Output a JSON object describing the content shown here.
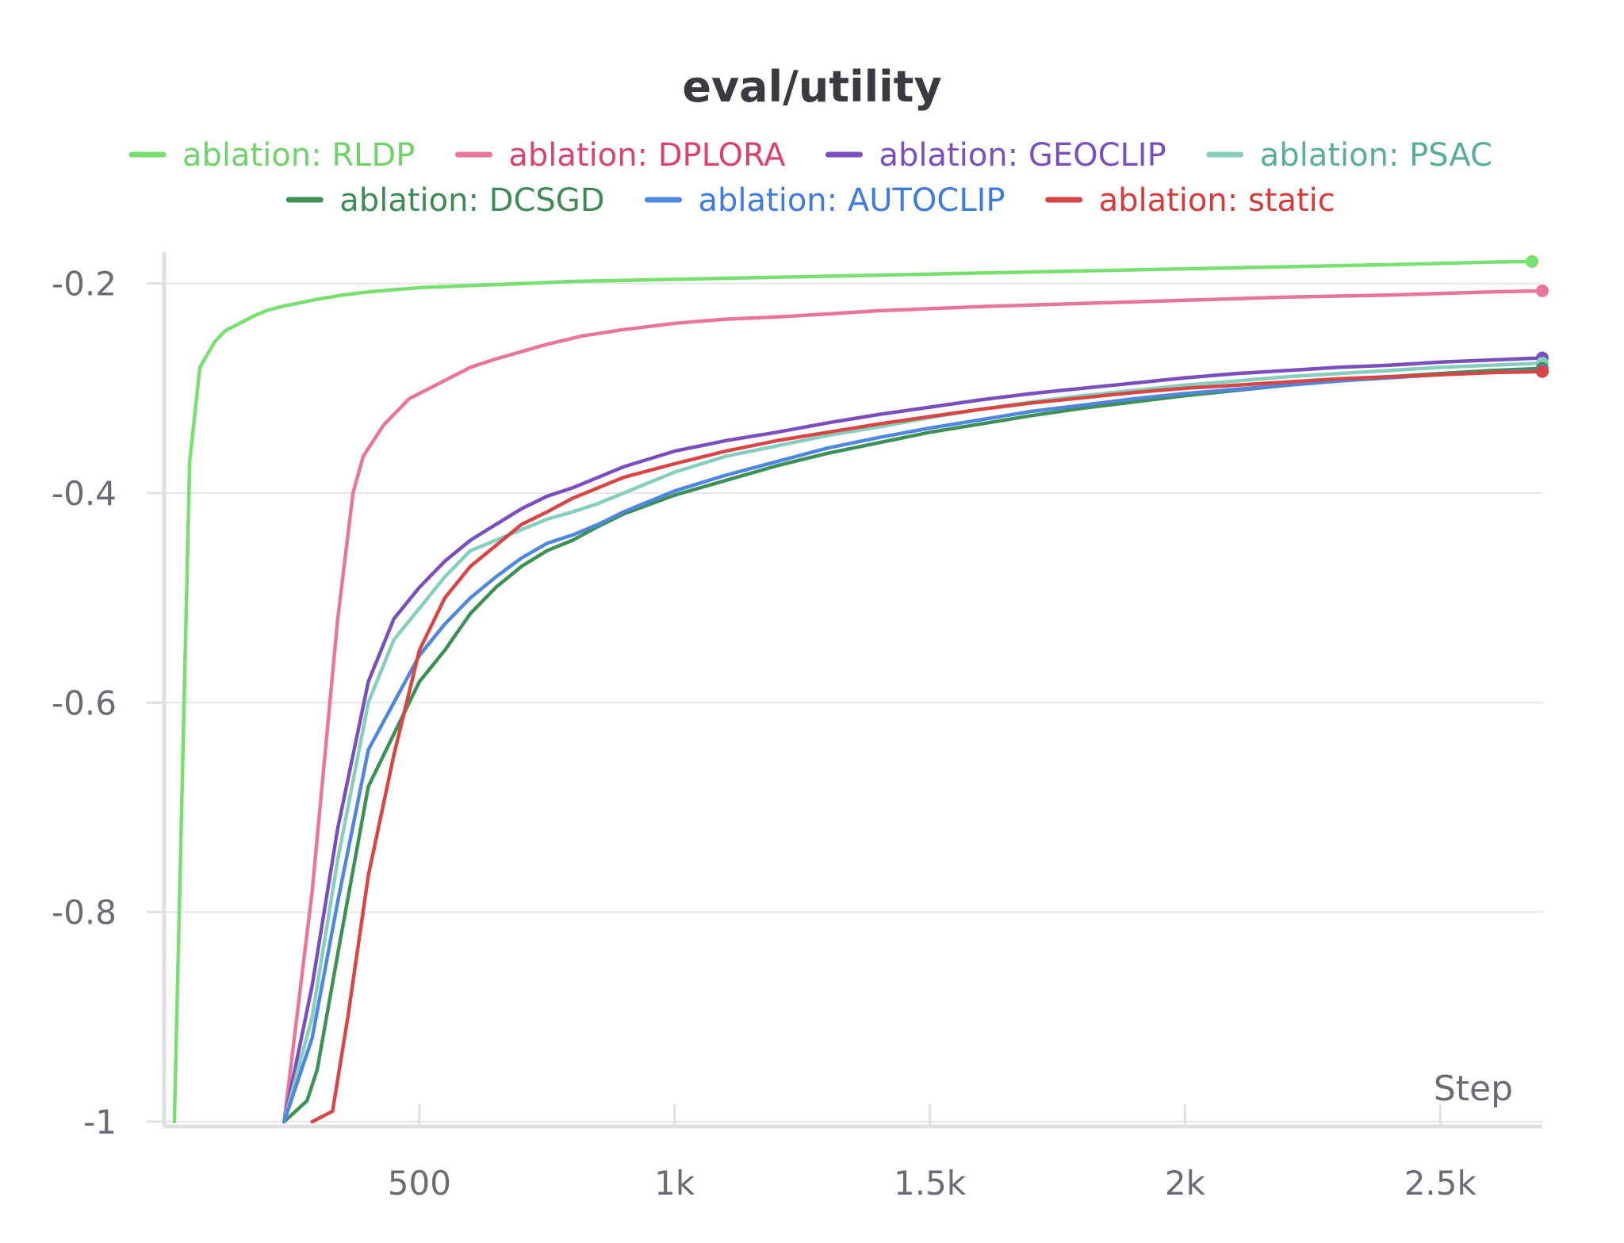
{
  "chart_data": {
    "type": "line",
    "title": "eval/utility",
    "xlabel": "Step",
    "ylabel": "",
    "xlim": [
      0,
      2700
    ],
    "ylim": [
      -1.0,
      -0.17
    ],
    "x_ticks": [
      500,
      1000,
      1500,
      2000,
      2500
    ],
    "x_tick_labels": [
      "500",
      "1k",
      "1.5k",
      "2k",
      "2.5k"
    ],
    "y_ticks": [
      -0.2,
      -0.4,
      -0.6,
      -0.8,
      -1.0
    ],
    "y_tick_labels": [
      "-0.2",
      "-0.4",
      "-0.6",
      "-0.8",
      "-1"
    ],
    "grid": "horizontal",
    "legend_position": "top",
    "series": [
      {
        "name": "ablation: RLDP",
        "color": "#77e06f",
        "text_color": "#6fd36a",
        "x": [
          20,
          50,
          70,
          100,
          120,
          140,
          160,
          180,
          200,
          230,
          260,
          300,
          350,
          400,
          500,
          600,
          700,
          800,
          900,
          1000,
          1100,
          1200,
          1400,
          1600,
          1800,
          2000,
          2200,
          2400,
          2600,
          2680
        ],
        "y": [
          -1.0,
          -0.37,
          -0.28,
          -0.255,
          -0.245,
          -0.24,
          -0.235,
          -0.23,
          -0.226,
          -0.222,
          -0.219,
          -0.215,
          -0.211,
          -0.208,
          -0.204,
          -0.202,
          -0.2,
          -0.198,
          -0.197,
          -0.196,
          -0.195,
          -0.194,
          -0.192,
          -0.19,
          -0.188,
          -0.186,
          -0.184,
          -0.182,
          -0.1795,
          -0.179
        ]
      },
      {
        "name": "ablation: DPLORA",
        "color": "#e8759c",
        "text_color": "#d9436f",
        "x": [
          235,
          290,
          340,
          370,
          390,
          430,
          480,
          540,
          600,
          650,
          700,
          750,
          820,
          900,
          1000,
          1100,
          1200,
          1300,
          1400,
          1500,
          1600,
          1800,
          2000,
          2200,
          2400,
          2600,
          2700
        ],
        "y": [
          -1.0,
          -0.78,
          -0.52,
          -0.4,
          -0.365,
          -0.335,
          -0.31,
          -0.295,
          -0.28,
          -0.272,
          -0.265,
          -0.258,
          -0.25,
          -0.244,
          -0.238,
          -0.234,
          -0.232,
          -0.229,
          -0.226,
          -0.224,
          -0.222,
          -0.219,
          -0.216,
          -0.213,
          -0.211,
          -0.208,
          -0.207
        ]
      },
      {
        "name": "ablation: GEOCLIP",
        "color": "#7a4fbd",
        "text_color": "#7a4fbd",
        "x": [
          235,
          290,
          340,
          400,
          450,
          500,
          550,
          600,
          650,
          700,
          750,
          800,
          850,
          900,
          1000,
          1100,
          1200,
          1300,
          1400,
          1500,
          1600,
          1700,
          1800,
          1900,
          2000,
          2100,
          2200,
          2300,
          2400,
          2500,
          2600,
          2700
        ],
        "y": [
          -1.0,
          -0.87,
          -0.72,
          -0.58,
          -0.52,
          -0.49,
          -0.465,
          -0.445,
          -0.43,
          -0.415,
          -0.403,
          -0.395,
          -0.385,
          -0.375,
          -0.36,
          -0.35,
          -0.342,
          -0.333,
          -0.325,
          -0.318,
          -0.311,
          -0.305,
          -0.3,
          -0.295,
          -0.29,
          -0.286,
          -0.283,
          -0.28,
          -0.278,
          -0.275,
          -0.273,
          -0.271
        ]
      },
      {
        "name": "ablation: PSAC",
        "color": "#86cfbf",
        "text_color": "#58ae9a",
        "x": [
          235,
          290,
          340,
          400,
          450,
          500,
          550,
          600,
          650,
          700,
          750,
          800,
          850,
          900,
          1000,
          1100,
          1200,
          1300,
          1400,
          1500,
          1600,
          1700,
          1800,
          1900,
          2000,
          2100,
          2200,
          2300,
          2400,
          2500,
          2600,
          2700
        ],
        "y": [
          -1.0,
          -0.9,
          -0.75,
          -0.6,
          -0.54,
          -0.51,
          -0.48,
          -0.455,
          -0.445,
          -0.435,
          -0.425,
          -0.418,
          -0.41,
          -0.4,
          -0.38,
          -0.365,
          -0.355,
          -0.345,
          -0.337,
          -0.328,
          -0.32,
          -0.313,
          -0.307,
          -0.302,
          -0.297,
          -0.293,
          -0.289,
          -0.286,
          -0.283,
          -0.28,
          -0.278,
          -0.276
        ]
      },
      {
        "name": "ablation: DCSGD",
        "color": "#3d9156",
        "text_color": "#3d8a54",
        "x": [
          235,
          280,
          300,
          340,
          400,
          450,
          500,
          550,
          600,
          650,
          700,
          750,
          800,
          850,
          900,
          1000,
          1100,
          1200,
          1300,
          1400,
          1500,
          1600,
          1700,
          1800,
          1900,
          2000,
          2100,
          2200,
          2300,
          2400,
          2500,
          2600,
          2700
        ],
        "y": [
          -1.0,
          -0.98,
          -0.95,
          -0.84,
          -0.68,
          -0.63,
          -0.58,
          -0.55,
          -0.515,
          -0.49,
          -0.47,
          -0.455,
          -0.445,
          -0.432,
          -0.42,
          -0.402,
          -0.388,
          -0.374,
          -0.362,
          -0.352,
          -0.342,
          -0.334,
          -0.326,
          -0.319,
          -0.313,
          -0.307,
          -0.302,
          -0.297,
          -0.293,
          -0.289,
          -0.286,
          -0.283,
          -0.281
        ]
      },
      {
        "name": "ablation: AUTOCLIP",
        "color": "#4f87e0",
        "text_color": "#3f7bdc",
        "x": [
          235,
          290,
          340,
          400,
          450,
          500,
          550,
          600,
          650,
          700,
          750,
          800,
          850,
          900,
          1000,
          1100,
          1200,
          1300,
          1400,
          1500,
          1600,
          1700,
          1800,
          1900,
          2000,
          2100,
          2200,
          2300,
          2400,
          2500,
          2600,
          2700
        ],
        "y": [
          -1.0,
          -0.92,
          -0.79,
          -0.645,
          -0.6,
          -0.555,
          -0.525,
          -0.5,
          -0.48,
          -0.462,
          -0.448,
          -0.44,
          -0.43,
          -0.418,
          -0.398,
          -0.383,
          -0.37,
          -0.357,
          -0.347,
          -0.338,
          -0.33,
          -0.322,
          -0.316,
          -0.31,
          -0.305,
          -0.301,
          -0.297,
          -0.293,
          -0.29,
          -0.287,
          -0.285,
          -0.283
        ]
      },
      {
        "name": "ablation: static",
        "color": "#d84545",
        "text_color": "#d63a3a",
        "x": [
          290,
          330,
          360,
          400,
          450,
          500,
          550,
          600,
          650,
          700,
          750,
          800,
          850,
          900,
          1000,
          1100,
          1200,
          1300,
          1400,
          1500,
          1600,
          1700,
          1800,
          1900,
          2000,
          2100,
          2200,
          2300,
          2400,
          2500,
          2600,
          2700
        ],
        "y": [
          -1.0,
          -0.99,
          -0.9,
          -0.765,
          -0.65,
          -0.55,
          -0.5,
          -0.47,
          -0.45,
          -0.43,
          -0.418,
          -0.405,
          -0.395,
          -0.385,
          -0.372,
          -0.36,
          -0.35,
          -0.342,
          -0.334,
          -0.327,
          -0.32,
          -0.314,
          -0.309,
          -0.304,
          -0.3,
          -0.297,
          -0.294,
          -0.291,
          -0.289,
          -0.287,
          -0.285,
          -0.284
        ]
      }
    ]
  }
}
